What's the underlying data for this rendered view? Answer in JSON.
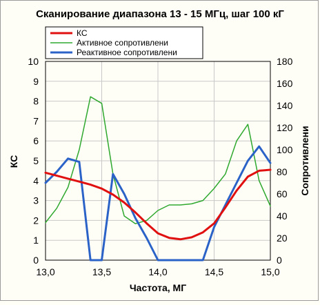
{
  "chart_data": {
    "type": "line",
    "title": "Сканирование диапазона 13 - 15 МГц, шаг 100 кГ",
    "xlabel": "Частота, МГ",
    "ylabel": "КС",
    "y2label": "Сопротивлени",
    "xlim": [
      13.0,
      15.0
    ],
    "ylim": [
      0,
      10
    ],
    "y2lim": [
      0,
      180
    ],
    "x_ticks": [
      "13,0",
      "13,5",
      "14,0",
      "14,5",
      "15,0"
    ],
    "x_tick_values": [
      13.0,
      13.5,
      14.0,
      14.5,
      15.0
    ],
    "y_ticks": [
      "0",
      "1",
      "2",
      "3",
      "4",
      "5",
      "6",
      "7",
      "8",
      "9",
      "10"
    ],
    "y_tick_values": [
      0,
      1,
      2,
      3,
      4,
      5,
      6,
      7,
      8,
      9,
      10
    ],
    "y2_ticks": [
      "0",
      "20",
      "40",
      "60",
      "80",
      "100",
      "120",
      "140",
      "160",
      "180"
    ],
    "y2_tick_values": [
      0,
      20,
      40,
      60,
      80,
      100,
      120,
      140,
      160,
      180
    ],
    "grid": true,
    "legend_position": "top-left",
    "series": [
      {
        "name": "КС",
        "axis": "left",
        "color": "#e01010",
        "width": 3,
        "x": [
          13.0,
          13.1,
          13.2,
          13.3,
          13.4,
          13.5,
          13.6,
          13.7,
          13.8,
          13.9,
          14.0,
          14.1,
          14.2,
          14.3,
          14.4,
          14.5,
          14.6,
          14.7,
          14.8,
          14.9,
          15.0
        ],
        "y": [
          4.4,
          4.25,
          4.1,
          3.95,
          3.8,
          3.6,
          3.3,
          2.9,
          2.4,
          1.85,
          1.35,
          1.12,
          1.05,
          1.15,
          1.4,
          1.85,
          2.65,
          3.5,
          4.2,
          4.5,
          4.55
        ]
      },
      {
        "name": "Активное сопротивлени",
        "axis": "right",
        "color": "#2ea82e",
        "width": 1.5,
        "x": [
          13.0,
          13.1,
          13.2,
          13.3,
          13.4,
          13.5,
          13.6,
          13.7,
          13.8,
          13.9,
          14.0,
          14.1,
          14.2,
          14.3,
          14.4,
          14.5,
          14.6,
          14.7,
          14.8,
          14.9,
          15.0
        ],
        "y": [
          34,
          47,
          66,
          100,
          148,
          142,
          78,
          40,
          33,
          36,
          45,
          50,
          50,
          51,
          54,
          65,
          78,
          108,
          123,
          72,
          49
        ]
      },
      {
        "name": "Реактивное сопротивлени",
        "axis": "right",
        "color": "#2a62c8",
        "width": 3,
        "x": [
          13.0,
          13.1,
          13.2,
          13.3,
          13.4,
          13.5,
          13.6,
          13.7,
          13.8,
          13.9,
          14.0,
          14.1,
          14.2,
          14.3,
          14.4,
          14.5,
          14.6,
          14.7,
          14.8,
          14.9,
          15.0
        ],
        "y": [
          70,
          80,
          92,
          89,
          0,
          0,
          78,
          60,
          38,
          20,
          0,
          0,
          0,
          0,
          0,
          30,
          50,
          70,
          90,
          103,
          88
        ]
      }
    ]
  }
}
